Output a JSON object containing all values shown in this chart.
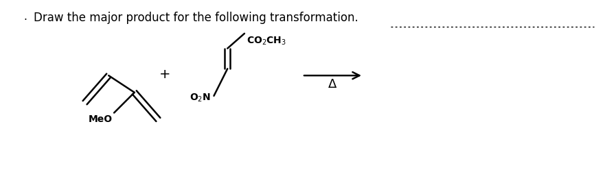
{
  "title": "Draw the major product for the following transformation.",
  "title_fontsize": 12,
  "title_fontweight": "normal",
  "bg_color": "#ffffff",
  "lw": 1.8
}
